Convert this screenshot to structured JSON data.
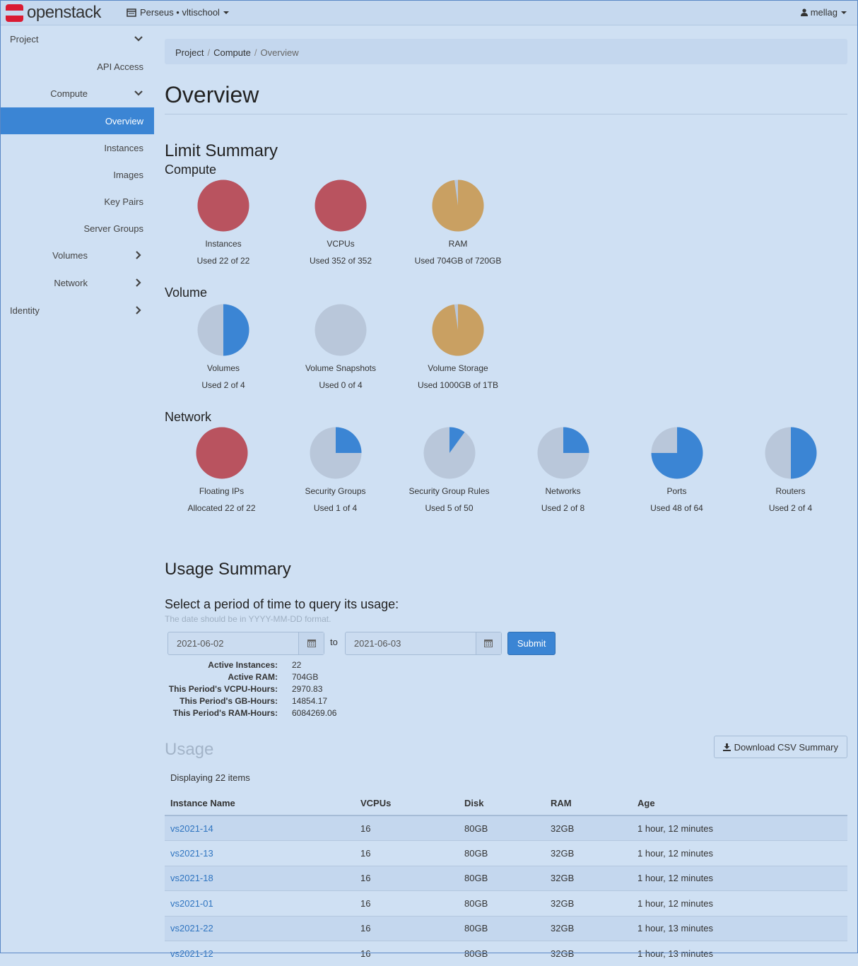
{
  "topbar": {
    "brand": "openstack",
    "project_switcher": "Perseus • vltischool",
    "user": "mellag"
  },
  "sidebar": {
    "project": "Project",
    "api_access": "API Access",
    "compute": "Compute",
    "compute_items": [
      "Overview",
      "Instances",
      "Images",
      "Key Pairs",
      "Server Groups"
    ],
    "volumes": "Volumes",
    "network": "Network",
    "identity": "Identity"
  },
  "breadcrumb": [
    "Project",
    "Compute",
    "Overview"
  ],
  "page_title": "Overview",
  "limit_summary": {
    "title": "Limit Summary",
    "groups": [
      {
        "name": "Compute",
        "items": [
          {
            "label": "Instances",
            "used_text": "Used 22 of 22",
            "fraction": 1.0,
            "color": "#b9535f"
          },
          {
            "label": "VCPUs",
            "used_text": "Used 352 of 352",
            "fraction": 1.0,
            "color": "#b9535f"
          },
          {
            "label": "RAM",
            "used_text": "Used 704GB of 720GB",
            "fraction": 0.978,
            "color": "#c9a062"
          }
        ]
      },
      {
        "name": "Volume",
        "items": [
          {
            "label": "Volumes",
            "used_text": "Used 2 of 4",
            "fraction": 0.5,
            "color": "#3b85d4"
          },
          {
            "label": "Volume Snapshots",
            "used_text": "Used 0 of 4",
            "fraction": 0.0,
            "color": "#3b85d4"
          },
          {
            "label": "Volume Storage",
            "used_text": "Used 1000GB of 1TB",
            "fraction": 0.977,
            "color": "#c9a062"
          }
        ]
      },
      {
        "name": "Network",
        "items": [
          {
            "label": "Floating IPs",
            "used_text": "Allocated 22 of 22",
            "fraction": 1.0,
            "color": "#b9535f"
          },
          {
            "label": "Security Groups",
            "used_text": "Used 1 of 4",
            "fraction": 0.25,
            "color": "#3b85d4"
          },
          {
            "label": "Security Group Rules",
            "used_text": "Used 5 of 50",
            "fraction": 0.1,
            "color": "#3b85d4"
          },
          {
            "label": "Networks",
            "used_text": "Used 2 of 8",
            "fraction": 0.25,
            "color": "#3b85d4"
          },
          {
            "label": "Ports",
            "used_text": "Used 48 of 64",
            "fraction": 0.75,
            "color": "#3b85d4"
          },
          {
            "label": "Routers",
            "used_text": "Used 2 of 4",
            "fraction": 0.5,
            "color": "#3b85d4"
          }
        ]
      }
    ],
    "unused_color": "#b9c7da"
  },
  "usage_summary": {
    "title": "Usage Summary",
    "query_title": "Select a period of time to query its usage:",
    "hint": "The date should be in YYYY-MM-DD format.",
    "start_date": "2021-06-02",
    "to_label": "to",
    "end_date": "2021-06-03",
    "submit": "Submit",
    "stats": [
      {
        "label": "Active Instances:",
        "value": "22"
      },
      {
        "label": "Active RAM:",
        "value": "704GB"
      },
      {
        "label": "This Period's VCPU-Hours:",
        "value": "2970.83"
      },
      {
        "label": "This Period's GB-Hours:",
        "value": "14854.17"
      },
      {
        "label": "This Period's RAM-Hours:",
        "value": "6084269.06"
      }
    ]
  },
  "usage": {
    "title": "Usage",
    "download_csv": "Download CSV Summary",
    "display_count": "Displaying 22 items",
    "columns": [
      "Instance Name",
      "VCPUs",
      "Disk",
      "RAM",
      "Age"
    ],
    "rows": [
      [
        "vs2021-14",
        "16",
        "80GB",
        "32GB",
        "1 hour, 12 minutes"
      ],
      [
        "vs2021-13",
        "16",
        "80GB",
        "32GB",
        "1 hour, 12 minutes"
      ],
      [
        "vs2021-18",
        "16",
        "80GB",
        "32GB",
        "1 hour, 12 minutes"
      ],
      [
        "vs2021-01",
        "16",
        "80GB",
        "32GB",
        "1 hour, 12 minutes"
      ],
      [
        "vs2021-22",
        "16",
        "80GB",
        "32GB",
        "1 hour, 13 minutes"
      ],
      [
        "vs2021-12",
        "16",
        "80GB",
        "32GB",
        "1 hour, 13 minutes"
      ]
    ]
  }
}
